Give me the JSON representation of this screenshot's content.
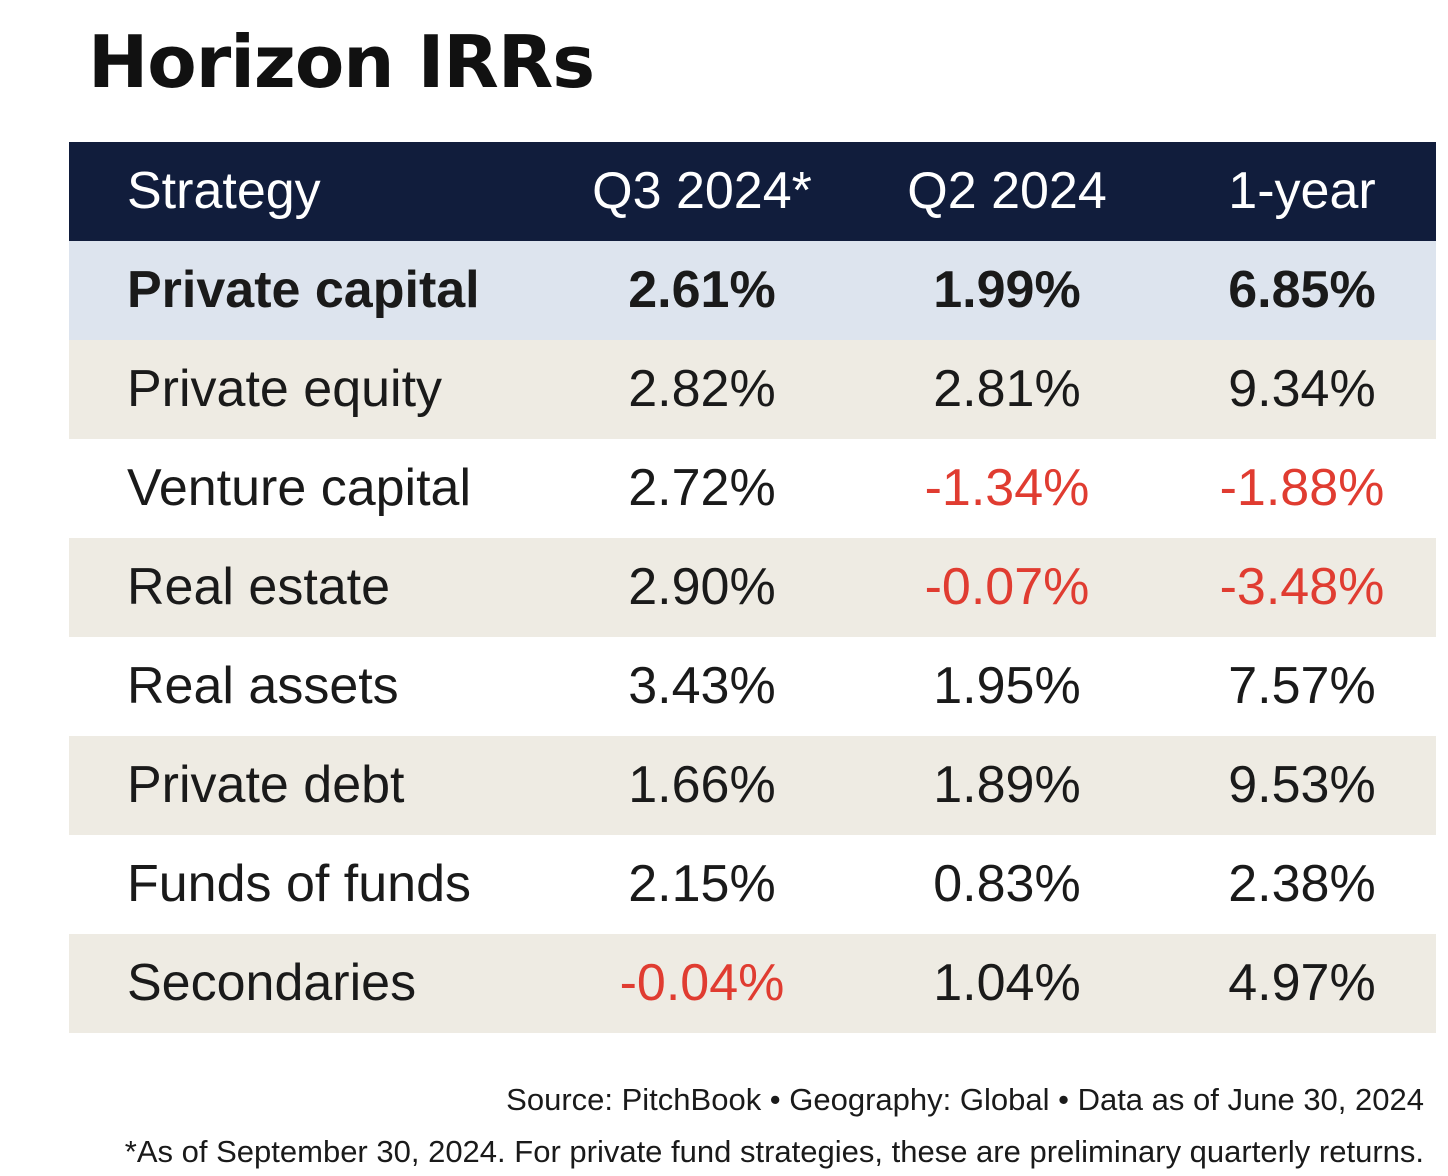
{
  "chart_data": {
    "type": "table",
    "title": "Horizon IRRs",
    "columns": [
      "Strategy",
      "Q3 2024*",
      "Q2 2024",
      "1-year"
    ],
    "rows": [
      {
        "strategy": "Private capital",
        "values": [
          "2.61%",
          "1.99%",
          "6.85%"
        ],
        "total": true
      },
      {
        "strategy": "Private equity",
        "values": [
          "2.82%",
          "2.81%",
          "9.34%"
        ]
      },
      {
        "strategy": "Venture capital",
        "values": [
          "2.72%",
          "-1.34%",
          "-1.88%"
        ]
      },
      {
        "strategy": "Real estate",
        "values": [
          "2.90%",
          "-0.07%",
          "-3.48%"
        ]
      },
      {
        "strategy": "Real assets",
        "values": [
          "3.43%",
          "1.95%",
          "7.57%"
        ]
      },
      {
        "strategy": "Private debt",
        "values": [
          "1.66%",
          "1.89%",
          "9.53%"
        ]
      },
      {
        "strategy": "Funds of funds",
        "values": [
          "2.15%",
          "0.83%",
          "2.38%"
        ]
      },
      {
        "strategy": "Secondaries",
        "values": [
          "-0.04%",
          "1.04%",
          "4.97%"
        ]
      }
    ],
    "source": "Source: PitchBook • Geography: Global • Data as of June 30, 2024",
    "footnote": "*As of September 30, 2024. For private fund strategies, these are preliminary quarterly returns."
  },
  "colors": {
    "header_bg": "#111d3c",
    "total_row_bg": "#dde4ee",
    "shaded_row_bg": "#eeebe3",
    "negative_text": "#e03c31"
  }
}
